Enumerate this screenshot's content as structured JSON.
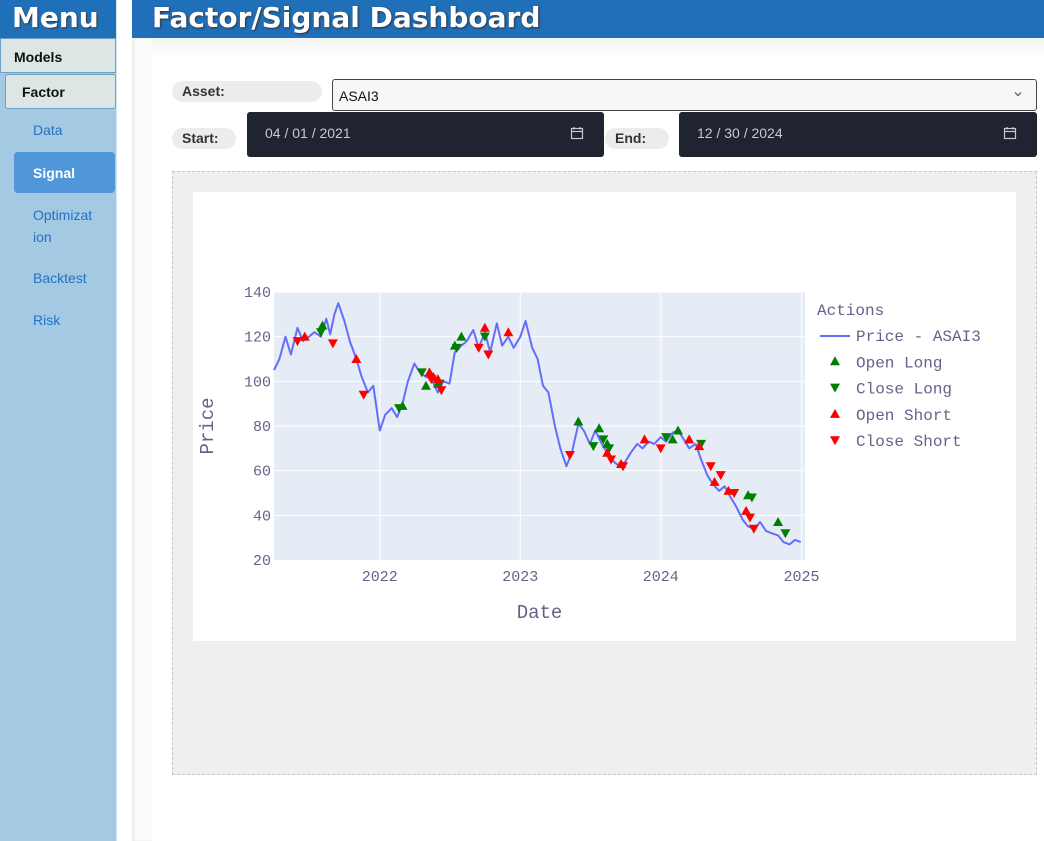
{
  "sidebar": {
    "title": "Menu",
    "models_label": "Models",
    "factor_label": "Factor",
    "items": [
      {
        "label": "Data"
      },
      {
        "label": "Signal"
      },
      {
        "label": "Optimizat ion"
      },
      {
        "label": "Backtest"
      },
      {
        "label": "Risk"
      }
    ]
  },
  "header": {
    "title": "Factor/Signal Dashboard"
  },
  "controls": {
    "asset_label": "Asset:",
    "asset_value": "ASAI3",
    "start_label": "Start:",
    "start_value": "04 / 01 / 2021",
    "end_label": "End:",
    "end_value": "12 / 30 / 2024"
  },
  "colors": {
    "header": "#1f6fb9",
    "sidebar": "#a3cae2",
    "active_item": "#4f97d8",
    "plot_bg": "#e5ecf6",
    "price_line": "#636efa",
    "long": "#008000",
    "short": "#ff0000"
  },
  "chart_data": {
    "type": "line",
    "xlabel": "Date",
    "ylabel": "Price",
    "legend_title": "Actions",
    "legend_position": "right",
    "ylim": [
      20,
      140
    ],
    "xlim": [
      "2021-04-01",
      "2025-01-10"
    ],
    "yticks": [
      20,
      40,
      60,
      80,
      100,
      120,
      140
    ],
    "xticks": [
      "2022",
      "2023",
      "2024",
      "2025"
    ],
    "grid": true,
    "series": [
      {
        "name": "Price - ASAI3",
        "kind": "line",
        "points": [
          [
            "2021-04-01",
            105
          ],
          [
            "2021-04-15",
            110
          ],
          [
            "2021-05-01",
            120
          ],
          [
            "2021-05-15",
            112
          ],
          [
            "2021-06-01",
            124
          ],
          [
            "2021-06-15",
            118
          ],
          [
            "2021-07-01",
            120
          ],
          [
            "2021-07-15",
            122
          ],
          [
            "2021-08-01",
            120
          ],
          [
            "2021-08-15",
            128
          ],
          [
            "2021-08-25",
            121
          ],
          [
            "2021-09-05",
            130
          ],
          [
            "2021-09-15",
            135
          ],
          [
            "2021-10-01",
            127
          ],
          [
            "2021-10-15",
            118
          ],
          [
            "2021-11-01",
            110
          ],
          [
            "2021-11-15",
            102
          ],
          [
            "2021-12-01",
            95
          ],
          [
            "2021-12-15",
            98
          ],
          [
            "2022-01-01",
            78
          ],
          [
            "2022-01-15",
            85
          ],
          [
            "2022-02-01",
            88
          ],
          [
            "2022-02-15",
            84
          ],
          [
            "2022-03-01",
            90
          ],
          [
            "2022-03-15",
            100
          ],
          [
            "2022-04-01",
            108
          ],
          [
            "2022-04-15",
            104
          ],
          [
            "2022-05-01",
            102
          ],
          [
            "2022-05-15",
            101
          ],
          [
            "2022-06-01",
            95
          ],
          [
            "2022-06-15",
            100
          ],
          [
            "2022-07-01",
            99
          ],
          [
            "2022-07-15",
            113
          ],
          [
            "2022-08-01",
            116
          ],
          [
            "2022-08-15",
            118
          ],
          [
            "2022-09-01",
            123
          ],
          [
            "2022-09-15",
            115
          ],
          [
            "2022-10-01",
            122
          ],
          [
            "2022-10-15",
            113
          ],
          [
            "2022-11-01",
            126
          ],
          [
            "2022-11-15",
            116
          ],
          [
            "2022-12-01",
            120
          ],
          [
            "2022-12-15",
            115
          ],
          [
            "2023-01-01",
            120
          ],
          [
            "2023-01-15",
            127
          ],
          [
            "2023-02-01",
            115
          ],
          [
            "2023-02-15",
            110
          ],
          [
            "2023-03-01",
            98
          ],
          [
            "2023-03-15",
            95
          ],
          [
            "2023-04-01",
            80
          ],
          [
            "2023-04-15",
            70
          ],
          [
            "2023-05-01",
            62
          ],
          [
            "2023-05-15",
            68
          ],
          [
            "2023-06-01",
            81
          ],
          [
            "2023-06-15",
            78
          ],
          [
            "2023-07-01",
            72
          ],
          [
            "2023-07-15",
            78
          ],
          [
            "2023-08-01",
            72
          ],
          [
            "2023-08-15",
            68
          ],
          [
            "2023-09-01",
            64
          ],
          [
            "2023-09-15",
            62
          ],
          [
            "2023-10-01",
            64
          ],
          [
            "2023-10-15",
            68
          ],
          [
            "2023-11-01",
            72
          ],
          [
            "2023-11-15",
            70
          ],
          [
            "2023-12-01",
            73
          ],
          [
            "2023-12-15",
            72
          ],
          [
            "2024-01-01",
            75
          ],
          [
            "2024-01-15",
            73
          ],
          [
            "2024-02-01",
            77
          ],
          [
            "2024-02-15",
            78
          ],
          [
            "2024-03-01",
            74
          ],
          [
            "2024-03-15",
            70
          ],
          [
            "2024-04-01",
            72
          ],
          [
            "2024-04-15",
            65
          ],
          [
            "2024-05-01",
            58
          ],
          [
            "2024-05-15",
            54
          ],
          [
            "2024-06-01",
            51
          ],
          [
            "2024-06-15",
            53
          ],
          [
            "2024-07-01",
            48
          ],
          [
            "2024-07-15",
            44
          ],
          [
            "2024-08-01",
            38
          ],
          [
            "2024-08-15",
            35
          ],
          [
            "2024-09-01",
            34
          ],
          [
            "2024-09-15",
            37
          ],
          [
            "2024-10-01",
            33
          ],
          [
            "2024-10-15",
            32
          ],
          [
            "2024-11-01",
            31
          ],
          [
            "2024-11-15",
            28
          ],
          [
            "2024-12-01",
            27
          ],
          [
            "2024-12-15",
            29
          ],
          [
            "2024-12-30",
            28
          ]
        ]
      },
      {
        "name": "Open Long",
        "kind": "marker-up",
        "points": [
          [
            "2021-08-05",
            125
          ],
          [
            "2022-03-01",
            89
          ],
          [
            "2022-05-01",
            98
          ],
          [
            "2022-06-01",
            99
          ],
          [
            "2022-07-15",
            116
          ],
          [
            "2022-08-01",
            120
          ],
          [
            "2023-06-01",
            82
          ],
          [
            "2023-07-25",
            79
          ],
          [
            "2023-08-15",
            72
          ],
          [
            "2024-02-01",
            74
          ],
          [
            "2024-02-15",
            78
          ],
          [
            "2024-08-15",
            49
          ],
          [
            "2024-11-01",
            37
          ]
        ]
      },
      {
        "name": "Close Long",
        "kind": "marker-down",
        "points": [
          [
            "2021-08-01",
            122
          ],
          [
            "2022-02-20",
            88
          ],
          [
            "2022-04-20",
            104
          ],
          [
            "2022-06-05",
            99
          ],
          [
            "2022-07-20",
            115
          ],
          [
            "2022-10-01",
            120
          ],
          [
            "2023-07-10",
            71
          ],
          [
            "2023-08-05",
            74
          ],
          [
            "2023-08-20",
            70
          ],
          [
            "2024-01-15",
            75
          ],
          [
            "2024-04-15",
            72
          ],
          [
            "2024-08-25",
            48
          ],
          [
            "2024-11-20",
            32
          ]
        ]
      },
      {
        "name": "Open Short",
        "kind": "marker-up",
        "points": [
          [
            "2021-06-20",
            120
          ],
          [
            "2021-11-01",
            110
          ],
          [
            "2022-05-10",
            104
          ],
          [
            "2022-05-20",
            102
          ],
          [
            "2022-06-01",
            101
          ],
          [
            "2022-10-01",
            124
          ],
          [
            "2022-12-01",
            122
          ],
          [
            "2023-08-15",
            68
          ],
          [
            "2023-09-20",
            63
          ],
          [
            "2023-11-20",
            74
          ],
          [
            "2024-03-15",
            74
          ],
          [
            "2024-04-10",
            71
          ],
          [
            "2024-05-20",
            55
          ],
          [
            "2024-06-25",
            51
          ],
          [
            "2024-08-10",
            42
          ]
        ]
      },
      {
        "name": "Close Short",
        "kind": "marker-down",
        "points": [
          [
            "2021-06-01",
            118
          ],
          [
            "2021-09-01",
            117
          ],
          [
            "2021-11-20",
            94
          ],
          [
            "2022-05-15",
            101
          ],
          [
            "2022-06-10",
            96
          ],
          [
            "2022-09-15",
            115
          ],
          [
            "2022-10-10",
            112
          ],
          [
            "2023-05-10",
            67
          ],
          [
            "2023-08-25",
            65
          ],
          [
            "2023-09-25",
            62
          ],
          [
            "2024-01-01",
            70
          ],
          [
            "2024-05-10",
            62
          ],
          [
            "2024-06-05",
            58
          ],
          [
            "2024-07-10",
            50
          ],
          [
            "2024-08-20",
            39
          ],
          [
            "2024-08-30",
            34
          ]
        ]
      }
    ]
  }
}
